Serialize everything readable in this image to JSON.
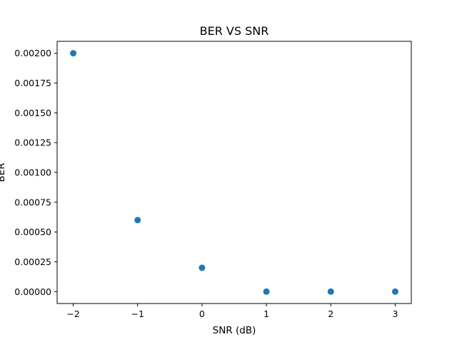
{
  "chart_data": {
    "type": "scatter",
    "title": "BER VS SNR",
    "xlabel": "SNR (dB)",
    "ylabel": "BER",
    "x": [
      -2,
      -1,
      0,
      1,
      2,
      3
    ],
    "y": [
      0.002,
      0.0006,
      0.0002,
      0.0,
      0.0,
      0.0
    ],
    "xlim": [
      -2.25,
      3.25
    ],
    "ylim": [
      -0.0001,
      0.0021
    ],
    "x_ticks": [
      -2,
      -1,
      0,
      1,
      2,
      3
    ],
    "x_tick_labels": [
      "−2",
      "−1",
      "0",
      "1",
      "2",
      "3"
    ],
    "y_ticks": [
      0.0,
      0.00025,
      0.0005,
      0.00075,
      0.001,
      0.00125,
      0.0015,
      0.00175,
      0.002
    ],
    "y_tick_labels": [
      "0.00000",
      "0.00025",
      "0.00050",
      "0.00075",
      "0.00100",
      "0.00125",
      "0.00150",
      "0.00175",
      "0.00200"
    ],
    "grid": false,
    "marker_color": "#1f77b4"
  }
}
